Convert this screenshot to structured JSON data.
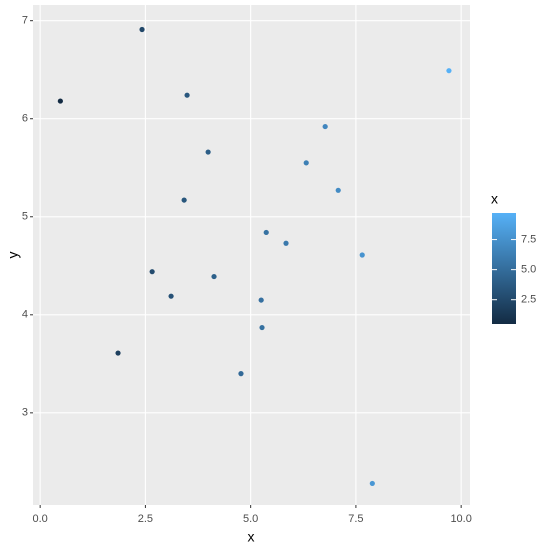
{
  "chart_data": {
    "type": "scatter",
    "x_label": "x",
    "y_label": "y",
    "x": [
      0.48,
      2.42,
      3.49,
      3.99,
      3.42,
      2.66,
      3.11,
      1.85,
      4.13,
      5.37,
      5.84,
      5.25,
      5.27,
      4.77,
      6.32,
      6.77,
      7.08,
      7.65,
      9.71,
      7.89
    ],
    "values": [
      6.18,
      6.91,
      6.24,
      5.66,
      5.17,
      4.44,
      4.19,
      3.61,
      4.39,
      4.84,
      4.73,
      4.15,
      3.87,
      3.4,
      5.55,
      5.92,
      5.27,
      4.61,
      6.49,
      2.28
    ],
    "xlim": [
      -0.17,
      10.21
    ],
    "ylim": [
      2.06,
      7.16
    ],
    "xticks": [
      {
        "value": 0,
        "label": "0.0"
      },
      2.5,
      {
        "value": 5,
        "label": "5.0"
      },
      7.5,
      {
        "value": 10,
        "label": "10.0"
      }
    ],
    "yticks": [
      3,
      4,
      5,
      6,
      7
    ],
    "grid": true,
    "color_legend": {
      "title": "x",
      "low": "#132B43",
      "high": "#56B1F7",
      "ticks": [
        2.5,
        {
          "value": 5,
          "label": "5.0"
        },
        7.5
      ]
    }
  }
}
